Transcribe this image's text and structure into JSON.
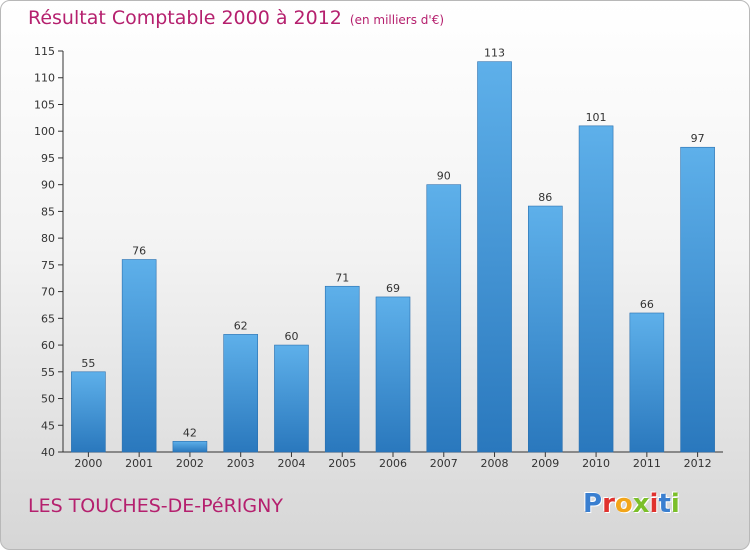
{
  "title": "Résultat Comptable 2000 à 2012",
  "subtitle": "(en milliers d'€)",
  "place": "LES TOUCHES-DE-PéRIGNY",
  "logo": {
    "letters": [
      "P",
      "r",
      "o",
      "x",
      "i",
      "t",
      "i"
    ],
    "colors": [
      "#3a7fd0",
      "#e0322e",
      "#f2a51a",
      "#7bbf2a",
      "#e0322e",
      "#3a7fd0",
      "#7bbf2a"
    ]
  },
  "colors": {
    "bar_top": "#5eb0ea",
    "bar_bottom": "#2a78bd",
    "title": "#b5206e"
  },
  "chart_data": {
    "type": "bar",
    "categories": [
      "2000",
      "2001",
      "2002",
      "2003",
      "2004",
      "2005",
      "2006",
      "2007",
      "2008",
      "2009",
      "2010",
      "2011",
      "2012"
    ],
    "values": [
      55,
      76,
      42,
      62,
      60,
      71,
      69,
      90,
      113,
      86,
      101,
      66,
      97
    ],
    "ylim": [
      40,
      115
    ],
    "yticks": [
      40,
      45,
      50,
      55,
      60,
      65,
      70,
      75,
      80,
      85,
      90,
      95,
      100,
      105,
      110,
      115
    ],
    "grid": false,
    "data_labels": true
  }
}
